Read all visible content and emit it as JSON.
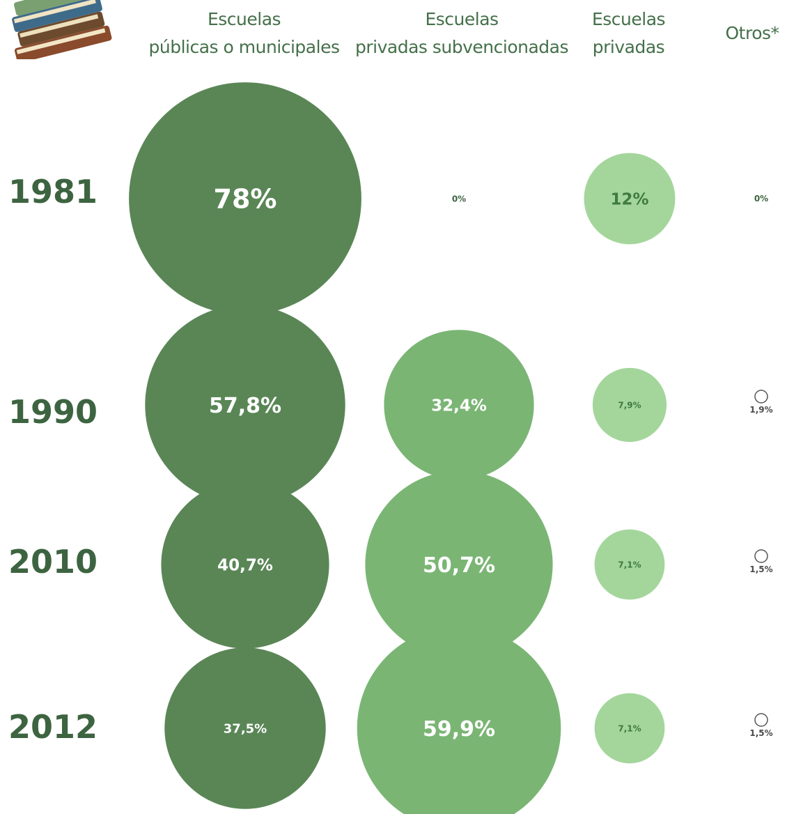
{
  "headers": [
    {
      "line1": "Escuelas",
      "line2": "públicas o municipales"
    },
    {
      "line1": "Escuelas",
      "line2": "privadas subvencionadas"
    },
    {
      "line1": "Escuelas",
      "line2": "privadas"
    },
    {
      "line1": "Otros*",
      "line2": ""
    }
  ],
  "years": [
    "1981",
    "1990",
    "2010",
    "2012"
  ],
  "colors": {
    "public": "#5a8656",
    "subsidized": "#7ab574",
    "private": "#a4d69c",
    "other_outline": "#555555",
    "header_text": "#45704a",
    "year_text": "#3d6440"
  },
  "chart_data": {
    "type": "bubble",
    "categories": [
      "Escuelas públicas o municipales",
      "Escuelas privadas subvencionadas",
      "Escuelas privadas",
      "Otros*"
    ],
    "rows": [
      "1981",
      "1990",
      "2010",
      "2012"
    ],
    "series": [
      {
        "values": [
          78,
          57.8,
          40.7,
          37.5
        ],
        "labels": [
          "78%",
          "57,8%",
          "40,7%",
          "37,5%"
        ]
      },
      {
        "values": [
          0,
          32.4,
          50.7,
          59.9
        ],
        "labels": [
          "0%",
          "32,4%",
          "50,7%",
          "59,9%"
        ]
      },
      {
        "values": [
          12,
          7.9,
          7.1,
          7.1
        ],
        "labels": [
          "12%",
          "7,9%",
          "7,1%",
          "7,1%"
        ]
      },
      {
        "values": [
          0,
          1.9,
          1.5,
          1.5
        ],
        "labels": [
          "0%",
          "1,9%",
          "1,5%",
          "1,5%"
        ]
      }
    ]
  }
}
